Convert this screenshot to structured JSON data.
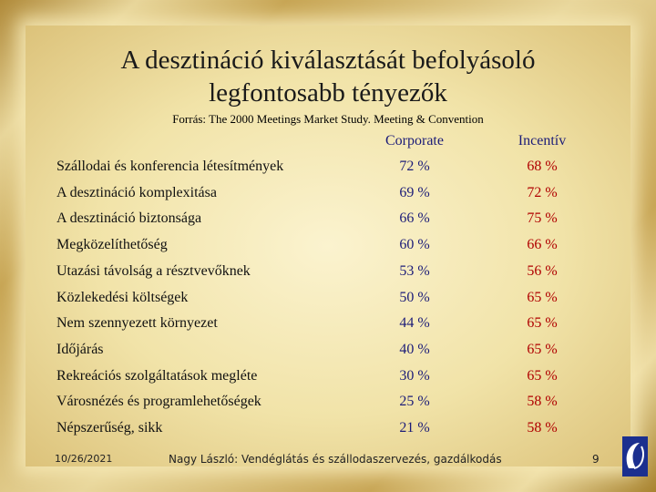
{
  "title_lines": [
    "A desztináció kiválasztását befolyásoló",
    "legfontosabb tényezők"
  ],
  "source": "Forrás: The 2000 Meetings Market Study. Meeting & Convention",
  "table": {
    "columns": [
      "Corporate",
      "Incentív"
    ],
    "rows": [
      [
        "Szállodai és konferencia létesítmények",
        "72 %",
        "68 %"
      ],
      [
        "A desztináció komplexitása",
        "69 %",
        "72 %"
      ],
      [
        "A desztináció biztonsága",
        "66 %",
        "75 %"
      ],
      [
        "Megközelíthetőség",
        "60 %",
        "66 %"
      ],
      [
        "Utazási távolság a résztvevőknek",
        "53 %",
        "56 %"
      ],
      [
        "Közlekedési költségek",
        "50 %",
        "65 %"
      ],
      [
        "Nem szennyezett környezet",
        "44 %",
        "65 %"
      ],
      [
        "Időjárás",
        "40 %",
        "65 %"
      ],
      [
        "Rekreációs szolgáltatások megléte",
        "30 %",
        "65 %"
      ],
      [
        "Városnézés és programlehetőségek",
        "25 %",
        "58 %"
      ],
      [
        "Népszerűség, sikk",
        "21 %",
        "58 %"
      ]
    ]
  },
  "footer": {
    "date": "10/26/2021",
    "text": "Nagy László:   Vendéglátás és szállodaszervezés, gazdálkodás",
    "page": "9"
  }
}
